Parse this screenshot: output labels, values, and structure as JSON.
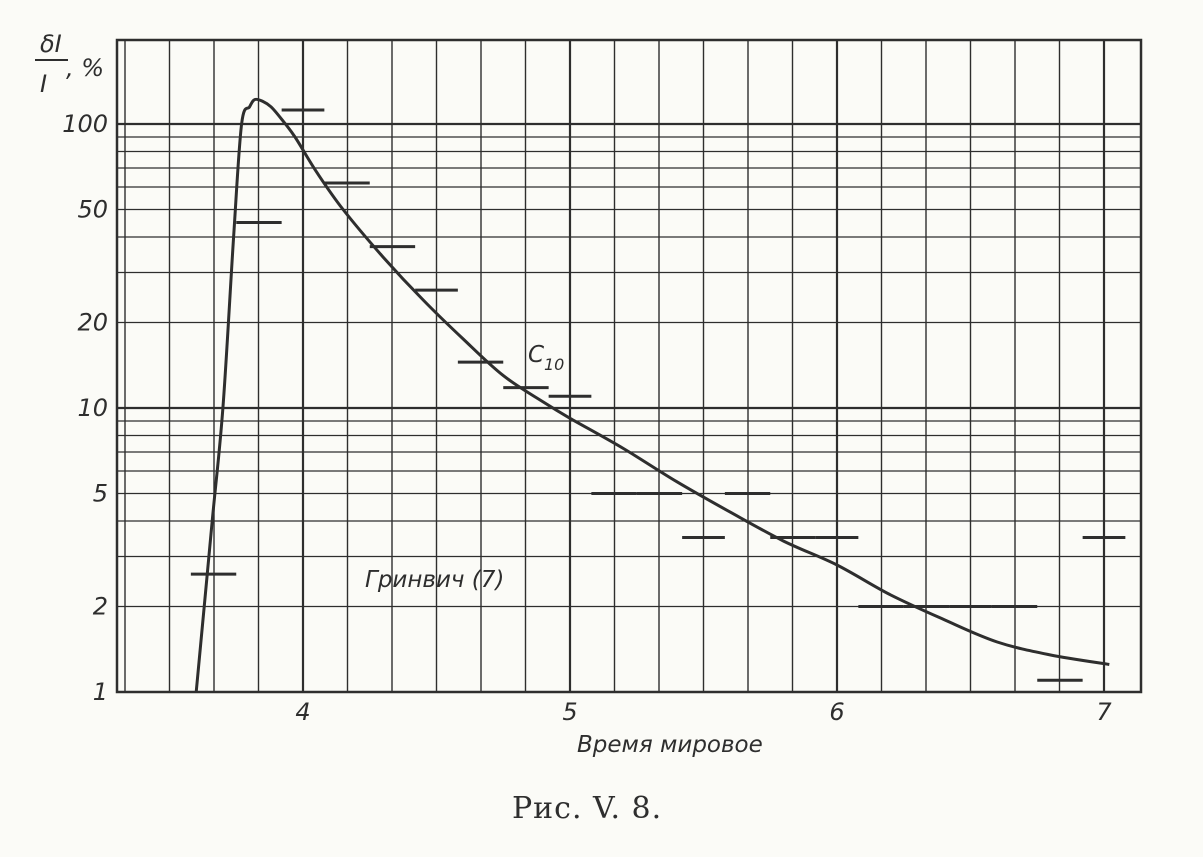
{
  "figure": {
    "caption": "Рис. V. 8."
  },
  "chart_data": {
    "type": "line",
    "xlabel": "Время мировое",
    "ylabel": {
      "numerator": "δI",
      "denominator": "I",
      "unit": ", %"
    },
    "x_ticks": [
      4,
      5,
      6,
      7
    ],
    "y_ticks": [
      1,
      2,
      5,
      10,
      20,
      50,
      100
    ],
    "y_scale": "log",
    "xlim": [
      3.3,
      7.15
    ],
    "ylim": [
      1,
      220
    ],
    "grid": true,
    "series": [
      {
        "name": "C10",
        "kind": "curve",
        "x": [
          3.6,
          3.66,
          3.7,
          3.74,
          3.77,
          3.8,
          3.82,
          3.85,
          3.88,
          3.92,
          3.97,
          4.05,
          4.15,
          4.3,
          4.45,
          4.6,
          4.75,
          4.9,
          5.0,
          5.2,
          5.4,
          5.6,
          5.8,
          6.0,
          6.2,
          6.4,
          6.6,
          6.8,
          7.02
        ],
        "y": [
          1.0,
          4.0,
          10.0,
          40.0,
          100.0,
          115.0,
          122.0,
          120.0,
          115.0,
          104.0,
          90.0,
          68.0,
          50.0,
          34.0,
          24.0,
          17.5,
          13.0,
          10.5,
          9.2,
          7.2,
          5.5,
          4.3,
          3.4,
          2.8,
          2.2,
          1.8,
          1.5,
          1.35,
          1.25
        ]
      },
      {
        "name": "Гринвич (7)",
        "kind": "step",
        "segments": [
          {
            "x0": 3.58,
            "x1": 3.75,
            "y": 2.6
          },
          {
            "x0": 3.75,
            "x1": 3.92,
            "y": 45.0
          },
          {
            "x0": 3.92,
            "x1": 4.08,
            "y": 112.0
          },
          {
            "x0": 4.08,
            "x1": 4.25,
            "y": 62.0
          },
          {
            "x0": 4.25,
            "x1": 4.42,
            "y": 37.0
          },
          {
            "x0": 4.42,
            "x1": 4.58,
            "y": 26.0
          },
          {
            "x0": 4.58,
            "x1": 4.75,
            "y": 14.5
          },
          {
            "x0": 4.75,
            "x1": 4.92,
            "y": 11.8
          },
          {
            "x0": 4.92,
            "x1": 5.08,
            "y": 11.0
          },
          {
            "x0": 5.08,
            "x1": 5.25,
            "y": 5.0
          },
          {
            "x0": 5.25,
            "x1": 5.42,
            "y": 5.0
          },
          {
            "x0": 5.42,
            "x1": 5.58,
            "y": 3.5
          },
          {
            "x0": 5.58,
            "x1": 5.75,
            "y": 5.0
          },
          {
            "x0": 5.75,
            "x1": 5.92,
            "y": 3.5
          },
          {
            "x0": 5.92,
            "x1": 6.08,
            "y": 3.5
          },
          {
            "x0": 6.08,
            "x1": 6.25,
            "y": 2.0
          },
          {
            "x0": 6.25,
            "x1": 6.42,
            "y": 2.0
          },
          {
            "x0": 6.42,
            "x1": 6.58,
            "y": 2.0
          },
          {
            "x0": 6.58,
            "x1": 6.75,
            "y": 2.0
          },
          {
            "x0": 6.75,
            "x1": 6.92,
            "y": 1.1
          },
          {
            "x0": 6.92,
            "x1": 7.08,
            "y": 3.5
          }
        ]
      }
    ],
    "annotations": {
      "curve_label_main": "C",
      "curve_label_sub": "10",
      "step_label": "Гринвич (7)"
    }
  },
  "colors": {
    "ink": "#2e2e2e",
    "paper": "#fbfbf7"
  }
}
